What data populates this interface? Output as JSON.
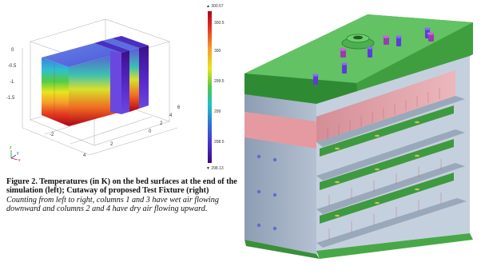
{
  "figure": {
    "caption_bold": "Figure 2. Temperatures (in K) on the bed surfaces at the end of the simulation (left); Cutaway of proposed Test Fixture (right)",
    "caption_italic": "Counting from left to right, columns 1 and 3 have wet air flowing downward and columns 2 and 4 have dry air flowing upward."
  },
  "colorbar": {
    "max_label": "▲ 300.57",
    "min_label": "▼ 298.13",
    "ticks": [
      "300.5",
      "300",
      "299.5",
      "299",
      "298.5"
    ],
    "colors": [
      "#b2001a",
      "#e83a22",
      "#f7a02a",
      "#e8e51c",
      "#4ec94a",
      "#1fc0c8",
      "#2f6fd8",
      "#4a2fc8",
      "#3a0a80"
    ]
  },
  "axes": {
    "tick_labels": [
      "0",
      "-0.5",
      "-1",
      "-1.5",
      "2",
      "4",
      "-2",
      "0",
      "2",
      "4",
      "6"
    ],
    "triad_labels": [
      "z",
      "x",
      "y"
    ]
  },
  "fixture_colors": {
    "top_plate": "#5cb85c",
    "frame": "#a9b7c9",
    "wet_band": "#e8a0a6",
    "bolt": "#9b3bb0",
    "rod": "#5e3bd8"
  }
}
